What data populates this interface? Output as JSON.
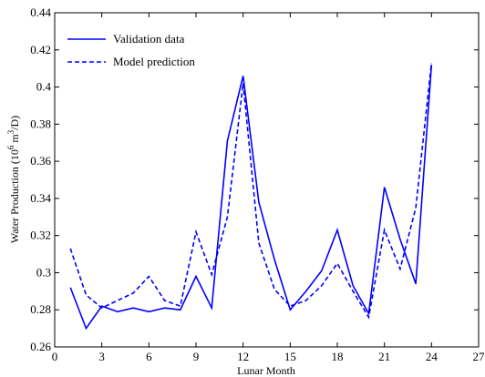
{
  "chart_data": {
    "type": "line",
    "title": "",
    "xlabel": "Lunar Month",
    "ylabel_parts": {
      "before": "Water Production (10",
      "exp1": "6",
      "mid": " m",
      "exp2": "3",
      "after": "/D)"
    },
    "xlim": [
      0,
      27
    ],
    "ylim": [
      0.26,
      0.44
    ],
    "x_ticks": [
      0,
      3,
      6,
      9,
      12,
      15,
      18,
      21,
      24,
      27
    ],
    "y_ticks": [
      0.26,
      0.28,
      0.3,
      0.32,
      0.34,
      0.36,
      0.38,
      0.4,
      0.42,
      0.44
    ],
    "grid": false,
    "legend_position": "top-left",
    "x": [
      1,
      2,
      3,
      4,
      5,
      6,
      7,
      8,
      9,
      10,
      11,
      12,
      13,
      14,
      15,
      16,
      17,
      18,
      19,
      20,
      21,
      22,
      23,
      24
    ],
    "series": [
      {
        "name": "Validation data",
        "style": "solid",
        "color": "#0000ff",
        "values": [
          0.292,
          0.27,
          0.282,
          0.279,
          0.281,
          0.279,
          0.281,
          0.28,
          0.298,
          0.281,
          0.371,
          0.406,
          0.338,
          0.307,
          0.28,
          0.29,
          0.301,
          0.323,
          0.293,
          0.278,
          0.346,
          0.318,
          0.294,
          0.412
        ]
      },
      {
        "name": "Model prediction",
        "style": "dashed",
        "color": "#0000ff",
        "values": [
          0.313,
          0.288,
          0.281,
          0.285,
          0.289,
          0.298,
          0.285,
          0.282,
          0.322,
          0.299,
          0.33,
          0.402,
          0.316,
          0.291,
          0.282,
          0.285,
          0.293,
          0.305,
          0.29,
          0.276,
          0.323,
          0.302,
          0.335,
          0.413
        ]
      }
    ]
  }
}
